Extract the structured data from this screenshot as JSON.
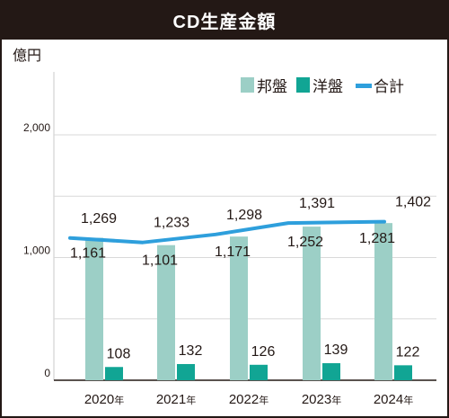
{
  "chart_data": {
    "type": "bar+line",
    "title": "CD生産金額",
    "unit_label": "億円",
    "categories": [
      "2020年",
      "2021年",
      "2022年",
      "2023年",
      "2024年"
    ],
    "category_years": [
      "2020",
      "2021",
      "2022",
      "2023",
      "2024"
    ],
    "category_suffix": "年",
    "ylim": [
      0,
      2000
    ],
    "yticks": [
      0,
      1000,
      2000
    ],
    "ytick_labels": [
      "0",
      "1,000",
      "2,000"
    ],
    "gridlines": "horizontal",
    "legend_position": "top-right",
    "series": [
      {
        "name": "邦盤",
        "type": "bar",
        "color": "#9ccfc6",
        "values": [
          1161,
          1101,
          1171,
          1252,
          1281
        ],
        "labels": [
          "1,161",
          "1,101",
          "1,171",
          "1,252",
          "1,281"
        ]
      },
      {
        "name": "洋盤",
        "type": "bar",
        "color": "#11a594",
        "values": [
          108,
          132,
          126,
          139,
          122
        ],
        "labels": [
          "108",
          "132",
          "126",
          "139",
          "122"
        ]
      },
      {
        "name": "合計",
        "type": "line",
        "color": "#2e9fdc",
        "values": [
          1269,
          1233,
          1298,
          1391,
          1402
        ],
        "labels": [
          "1,269",
          "1,233",
          "1,298",
          "1,391",
          "1,402"
        ]
      }
    ]
  }
}
